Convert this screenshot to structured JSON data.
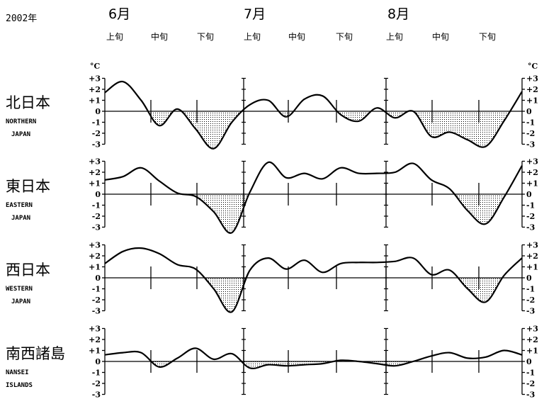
{
  "header": {
    "year": "2002年",
    "months": [
      "6月",
      "7月",
      "8月"
    ],
    "dekads": [
      "上旬",
      "中旬",
      "下旬",
      "上旬",
      "中旬",
      "下旬",
      "上旬",
      "中旬",
      "下旬"
    ]
  },
  "chart_data": {
    "type": "line",
    "unit": "°C",
    "ylim": [
      -3,
      3
    ],
    "yticks": [
      "+3",
      "+2",
      "+1",
      "0",
      "-1",
      "-2",
      "-3"
    ],
    "fill_below_zero": "dotted",
    "x": [
      "6/1",
      "6/5",
      "6/9",
      "6/13",
      "6/17",
      "6/21",
      "6/25",
      "6/29",
      "7/3",
      "7/7",
      "7/11",
      "7/15",
      "7/19",
      "7/23",
      "7/27",
      "7/31",
      "8/4",
      "8/8",
      "8/12",
      "8/16",
      "8/20",
      "8/24",
      "8/28",
      "8/31"
    ],
    "regions": [
      {
        "name": "北日本",
        "name_en": [
          "NORTHERN",
          "JAPAN"
        ],
        "values": [
          1.7,
          2.7,
          1.0,
          -1.3,
          0.2,
          -1.6,
          -3.4,
          -1.0,
          0.6,
          1.0,
          -0.5,
          1.1,
          1.4,
          -0.3,
          -0.9,
          0.3,
          -0.6,
          0.0,
          -2.3,
          -1.9,
          -2.6,
          -3.2,
          -0.9,
          1.8
        ]
      },
      {
        "name": "東日本",
        "name_en": [
          "EASTERN",
          "JAPAN"
        ],
        "values": [
          1.3,
          1.6,
          2.4,
          1.2,
          0.1,
          -0.2,
          -1.6,
          -3.5,
          0.2,
          2.9,
          1.5,
          1.9,
          1.4,
          2.4,
          1.9,
          1.9,
          2.0,
          2.8,
          1.3,
          0.5,
          -1.5,
          -2.7,
          -0.3,
          2.6
        ]
      },
      {
        "name": "西日本",
        "name_en": [
          "WESTERN",
          "JAPAN"
        ],
        "values": [
          1.3,
          2.4,
          2.7,
          2.2,
          1.2,
          0.8,
          -1.0,
          -3.1,
          0.7,
          1.8,
          0.8,
          1.6,
          0.5,
          1.3,
          1.4,
          1.4,
          1.5,
          1.8,
          0.3,
          0.7,
          -1.0,
          -2.2,
          0.2,
          1.8
        ]
      },
      {
        "name": "南西諸島",
        "name_en": [
          "NANSEI",
          "ISLANDS"
        ],
        "values": [
          0.6,
          0.8,
          0.8,
          -0.5,
          0.3,
          1.2,
          0.2,
          0.7,
          -0.6,
          -0.3,
          -0.4,
          -0.3,
          -0.2,
          0.1,
          0.0,
          -0.2,
          -0.4,
          0.0,
          0.5,
          0.8,
          0.3,
          0.4,
          1.0,
          0.6
        ]
      }
    ]
  }
}
